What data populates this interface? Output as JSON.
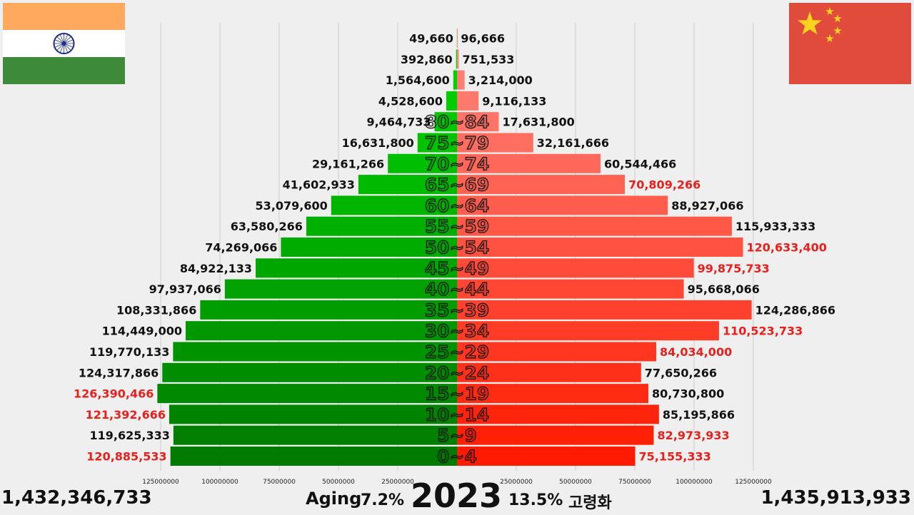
{
  "colors": {
    "india_top": "#00dc00",
    "india_bottom": "#007a00",
    "china_top": "#ff8a80",
    "china_bottom": "#ff1a00",
    "highlight_text": "#e8201c",
    "normal_text": "#111111",
    "grid": "#cccccc"
  },
  "flags": {
    "left": {
      "icon": "india-flag-icon",
      "colors": [
        "#ff9933",
        "#ffffff",
        "#138808",
        "#000080"
      ]
    },
    "right": {
      "icon": "china-flag-icon",
      "colors": [
        "#de2910",
        "#ffde00"
      ]
    }
  },
  "footer": {
    "left_total": "1,432,346,733",
    "right_total": "1,435,913,933",
    "aging_label": "Aging",
    "left_pct": "7.2%",
    "year": "2023",
    "right_pct": "13.5%",
    "aging_label_ko": "고령화"
  },
  "chart_data": {
    "type": "bar",
    "title": "",
    "xlabel": "",
    "ylabel": "",
    "xlim": [
      -150000000,
      150000000
    ],
    "x_ticks": [
      125000000,
      100000000,
      75000000,
      50000000,
      25000000,
      0,
      25000000,
      50000000,
      75000000,
      100000000,
      125000000
    ],
    "x_tick_labels": [
      "125000000",
      "100000000",
      "75000000",
      "50000000",
      "25000000",
      "",
      "25000000",
      "50000000",
      "75000000",
      "100000000",
      "125000000"
    ],
    "categories": [
      "",
      "",
      "",
      "",
      "80~84",
      "75~79",
      "70~74",
      "65~69",
      "60~64",
      "55~59",
      "50~54",
      "45~49",
      "40~44",
      "35~39",
      "30~34",
      "25~29",
      "20~24",
      "15~19",
      "10~14",
      "5~9",
      "0~4"
    ],
    "series": [
      {
        "side": "left",
        "values": [
          49660,
          392860,
          1564600,
          4528600,
          9464733,
          16631800,
          29161266,
          41602933,
          53079600,
          63580266,
          74269066,
          84922133,
          97937066,
          108331866,
          114449000,
          119770133,
          124317866,
          126390466,
          121392666,
          119625333,
          120885533
        ],
        "labels": [
          "49,660",
          "392,860",
          "1,564,600",
          "4,528,600",
          "9,464,733",
          "16,631,800",
          "29,161,266",
          "41,602,933",
          "53,079,600",
          "63,580,266",
          "74,269,066",
          "84,922,133",
          "97,937,066",
          "108,331,866",
          "114,449,000",
          "119,770,133",
          "124,317,866",
          "126,390,466",
          "121,392,666",
          "119,625,333",
          "120,885,533"
        ],
        "label_highlight": [
          false,
          false,
          false,
          false,
          false,
          false,
          false,
          false,
          false,
          false,
          false,
          false,
          false,
          false,
          false,
          false,
          false,
          true,
          true,
          false,
          true
        ]
      },
      {
        "side": "right",
        "values": [
          96666,
          751533,
          3214000,
          9116133,
          17631800,
          32161666,
          60544466,
          70809266,
          88927066,
          115933333,
          120633400,
          99875733,
          95668066,
          124286866,
          110523733,
          84034000,
          77650266,
          80730800,
          85195866,
          82973933,
          75155333
        ],
        "labels": [
          "96,666",
          "751,533",
          "3,214,000",
          "9,116,133",
          "17,631,800",
          "32,161,666",
          "60,544,466",
          "70,809,266",
          "88,927,066",
          "115,933,333",
          "120,633,400",
          "99,875,733",
          "95,668,066",
          "124,286,866",
          "110,523,733",
          "84,034,000",
          "77,650,266",
          "80,730,800",
          "85,195,866",
          "82,973,933",
          "75,155,333"
        ],
        "label_highlight": [
          false,
          false,
          false,
          false,
          false,
          false,
          false,
          true,
          false,
          false,
          true,
          true,
          false,
          false,
          true,
          true,
          false,
          false,
          false,
          true,
          true
        ]
      }
    ],
    "grid": true
  }
}
